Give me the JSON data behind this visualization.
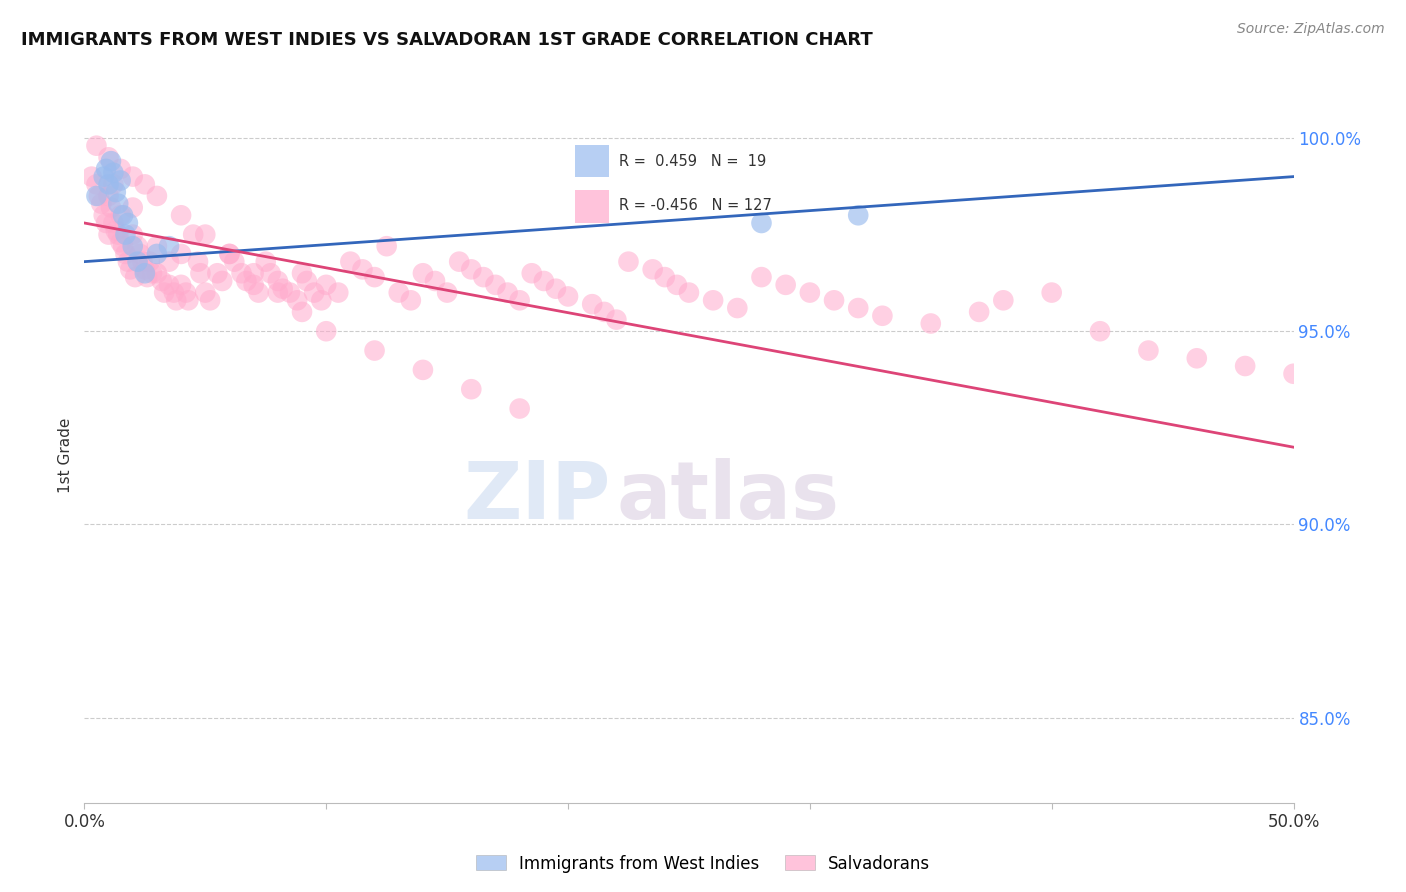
{
  "title": "IMMIGRANTS FROM WEST INDIES VS SALVADORAN 1ST GRADE CORRELATION CHART",
  "source": "Source: ZipAtlas.com",
  "ylabel": "1st Grade",
  "xlim": [
    0.0,
    0.5
  ],
  "ylim": [
    0.828,
    1.008
  ],
  "xticks": [
    0.0,
    0.1,
    0.2,
    0.3,
    0.4,
    0.5
  ],
  "xtick_labels": [
    "0.0%",
    "",
    "",
    "",
    "",
    "50.0%"
  ],
  "yticks_right": [
    0.85,
    0.9,
    0.95,
    1.0
  ],
  "ytick_labels_right": [
    "85.0%",
    "90.0%",
    "95.0%",
    "100.0%"
  ],
  "blue_R": 0.459,
  "blue_N": 19,
  "pink_R": -0.456,
  "pink_N": 127,
  "blue_color": "#99BBEE",
  "pink_color": "#FFAACC",
  "blue_line_color": "#3366BB",
  "pink_line_color": "#DD4477",
  "background_color": "#FFFFFF",
  "grid_color": "#CCCCCC",
  "watermark_zip": "ZIP",
  "watermark_atlas": "atlas",
  "blue_scatter_x": [
    0.005,
    0.008,
    0.009,
    0.01,
    0.011,
    0.012,
    0.013,
    0.014,
    0.015,
    0.016,
    0.017,
    0.018,
    0.02,
    0.022,
    0.025,
    0.03,
    0.035,
    0.28,
    0.32
  ],
  "blue_scatter_y": [
    0.985,
    0.99,
    0.992,
    0.988,
    0.994,
    0.991,
    0.986,
    0.983,
    0.989,
    0.98,
    0.975,
    0.978,
    0.972,
    0.968,
    0.965,
    0.97,
    0.972,
    0.978,
    0.98
  ],
  "pink_scatter_x": [
    0.003,
    0.005,
    0.006,
    0.007,
    0.008,
    0.009,
    0.01,
    0.01,
    0.011,
    0.012,
    0.012,
    0.013,
    0.014,
    0.015,
    0.015,
    0.016,
    0.017,
    0.018,
    0.019,
    0.02,
    0.02,
    0.021,
    0.022,
    0.023,
    0.024,
    0.025,
    0.026,
    0.027,
    0.028,
    0.03,
    0.03,
    0.032,
    0.033,
    0.035,
    0.035,
    0.037,
    0.038,
    0.04,
    0.04,
    0.042,
    0.043,
    0.045,
    0.047,
    0.048,
    0.05,
    0.052,
    0.055,
    0.057,
    0.06,
    0.062,
    0.065,
    0.067,
    0.07,
    0.072,
    0.075,
    0.077,
    0.08,
    0.082,
    0.085,
    0.088,
    0.09,
    0.092,
    0.095,
    0.098,
    0.1,
    0.105,
    0.11,
    0.115,
    0.12,
    0.125,
    0.13,
    0.135,
    0.14,
    0.145,
    0.15,
    0.155,
    0.16,
    0.165,
    0.17,
    0.175,
    0.18,
    0.185,
    0.19,
    0.195,
    0.2,
    0.21,
    0.215,
    0.22,
    0.225,
    0.235,
    0.24,
    0.245,
    0.25,
    0.26,
    0.27,
    0.28,
    0.29,
    0.3,
    0.31,
    0.32,
    0.33,
    0.35,
    0.37,
    0.38,
    0.4,
    0.42,
    0.44,
    0.46,
    0.48,
    0.5,
    0.005,
    0.01,
    0.015,
    0.02,
    0.025,
    0.03,
    0.04,
    0.05,
    0.06,
    0.07,
    0.08,
    0.09,
    0.1,
    0.12,
    0.14,
    0.16,
    0.18
  ],
  "pink_scatter_y": [
    0.99,
    0.988,
    0.985,
    0.983,
    0.98,
    0.978,
    0.975,
    0.985,
    0.982,
    0.978,
    0.988,
    0.976,
    0.975,
    0.973,
    0.98,
    0.972,
    0.97,
    0.968,
    0.966,
    0.975,
    0.982,
    0.964,
    0.972,
    0.97,
    0.968,
    0.966,
    0.964,
    0.968,
    0.965,
    0.972,
    0.965,
    0.963,
    0.96,
    0.968,
    0.962,
    0.96,
    0.958,
    0.97,
    0.962,
    0.96,
    0.958,
    0.975,
    0.968,
    0.965,
    0.96,
    0.958,
    0.965,
    0.963,
    0.97,
    0.968,
    0.965,
    0.963,
    0.962,
    0.96,
    0.968,
    0.965,
    0.963,
    0.961,
    0.96,
    0.958,
    0.965,
    0.963,
    0.96,
    0.958,
    0.962,
    0.96,
    0.968,
    0.966,
    0.964,
    0.972,
    0.96,
    0.958,
    0.965,
    0.963,
    0.96,
    0.968,
    0.966,
    0.964,
    0.962,
    0.96,
    0.958,
    0.965,
    0.963,
    0.961,
    0.959,
    0.957,
    0.955,
    0.953,
    0.968,
    0.966,
    0.964,
    0.962,
    0.96,
    0.958,
    0.956,
    0.964,
    0.962,
    0.96,
    0.958,
    0.956,
    0.954,
    0.952,
    0.955,
    0.958,
    0.96,
    0.95,
    0.945,
    0.943,
    0.941,
    0.939,
    0.998,
    0.995,
    0.992,
    0.99,
    0.988,
    0.985,
    0.98,
    0.975,
    0.97,
    0.965,
    0.96,
    0.955,
    0.95,
    0.945,
    0.94,
    0.935,
    0.93
  ]
}
